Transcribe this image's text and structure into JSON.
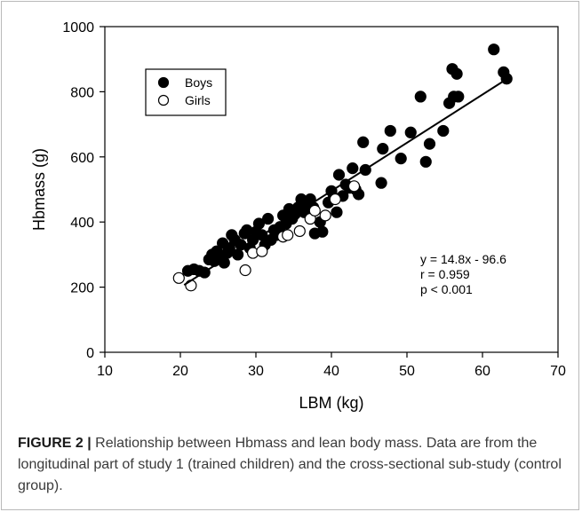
{
  "chart_data": {
    "type": "scatter",
    "title": "",
    "xlabel": "LBM (kg)",
    "ylabel": "Hbmass (g)",
    "xlim": [
      10,
      70
    ],
    "ylim": [
      0,
      1000
    ],
    "xticks": [
      10,
      20,
      30,
      40,
      50,
      60,
      70
    ],
    "yticks": [
      0,
      200,
      400,
      600,
      800,
      1000
    ],
    "grid": false,
    "legend_position": "top-left",
    "series": [
      {
        "name": "Boys",
        "marker": "filled-circle",
        "color": "#000000",
        "points": [
          [
            21.0,
            250
          ],
          [
            21.8,
            255
          ],
          [
            22.5,
            250
          ],
          [
            23.2,
            245
          ],
          [
            23.8,
            285
          ],
          [
            24.2,
            300
          ],
          [
            24.5,
            280
          ],
          [
            24.8,
            310
          ],
          [
            25.2,
            295
          ],
          [
            25.6,
            335
          ],
          [
            25.8,
            275
          ],
          [
            26.2,
            305
          ],
          [
            26.5,
            320
          ],
          [
            26.8,
            360
          ],
          [
            27.2,
            345
          ],
          [
            27.6,
            300
          ],
          [
            28.0,
            330
          ],
          [
            28.5,
            365
          ],
          [
            28.8,
            375
          ],
          [
            29.2,
            320
          ],
          [
            29.6,
            345
          ],
          [
            30.0,
            370
          ],
          [
            30.4,
            395
          ],
          [
            30.8,
            360
          ],
          [
            31.2,
            330
          ],
          [
            31.6,
            410
          ],
          [
            32.0,
            345
          ],
          [
            32.4,
            375
          ],
          [
            32.8,
            360
          ],
          [
            33.2,
            385
          ],
          [
            33.6,
            420
          ],
          [
            34.0,
            395
          ],
          [
            34.4,
            440
          ],
          [
            34.8,
            410
          ],
          [
            35.2,
            425
          ],
          [
            35.6,
            445
          ],
          [
            36.0,
            470
          ],
          [
            36.4,
            430
          ],
          [
            36.8,
            455
          ],
          [
            37.2,
            470
          ],
          [
            37.6,
            445
          ],
          [
            37.8,
            365
          ],
          [
            38.5,
            400
          ],
          [
            38.8,
            370
          ],
          [
            39.6,
            460
          ],
          [
            40.0,
            495
          ],
          [
            40.3,
            475
          ],
          [
            40.7,
            430
          ],
          [
            41.0,
            545
          ],
          [
            41.5,
            480
          ],
          [
            41.9,
            515
          ],
          [
            42.4,
            505
          ],
          [
            42.8,
            565
          ],
          [
            43.2,
            500
          ],
          [
            43.6,
            485
          ],
          [
            44.2,
            645
          ],
          [
            44.5,
            560
          ],
          [
            46.6,
            520
          ],
          [
            46.8,
            625
          ],
          [
            47.8,
            680
          ],
          [
            49.2,
            595
          ],
          [
            50.5,
            675
          ],
          [
            51.8,
            785
          ],
          [
            52.5,
            585
          ],
          [
            53.0,
            640
          ],
          [
            54.8,
            680
          ],
          [
            55.6,
            765
          ],
          [
            56.0,
            870
          ],
          [
            56.2,
            785
          ],
          [
            56.6,
            855
          ],
          [
            56.8,
            785
          ],
          [
            61.5,
            930
          ],
          [
            62.8,
            860
          ],
          [
            63.2,
            840
          ]
        ]
      },
      {
        "name": "Girls",
        "marker": "open-circle",
        "color": "#000000",
        "points": [
          [
            19.8,
            228
          ],
          [
            21.4,
            205
          ],
          [
            28.6,
            252
          ],
          [
            29.6,
            305
          ],
          [
            30.8,
            310
          ],
          [
            33.6,
            355
          ],
          [
            34.2,
            360
          ],
          [
            35.8,
            372
          ],
          [
            37.2,
            410
          ],
          [
            37.8,
            435
          ],
          [
            39.2,
            420
          ],
          [
            40.5,
            470
          ],
          [
            43.0,
            510
          ]
        ]
      }
    ],
    "regression": {
      "slope": 14.8,
      "intercept": -96.6,
      "x_range": [
        20.5,
        63
      ]
    },
    "annotations": [
      "y = 14.8x - 96.6",
      "r = 0.959",
      "p < 0.001"
    ]
  },
  "caption": {
    "label": "FIGURE 2 |",
    "text": " Relationship between Hbmass and lean body mass. Data are from the longitudinal part of study 1 (trained children) and the cross-sectional sub-study (control group)."
  }
}
